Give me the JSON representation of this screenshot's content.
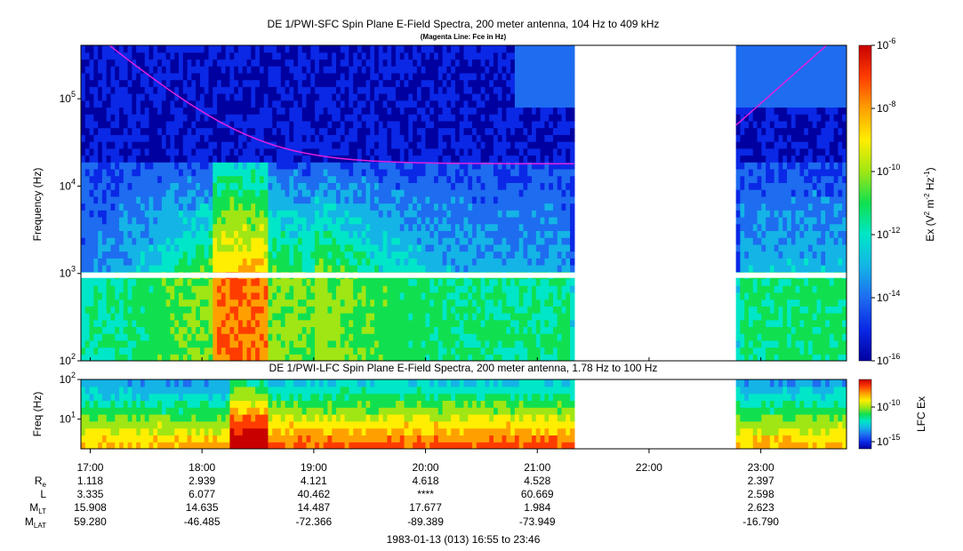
{
  "chart_data": [
    {
      "type": "heatmap",
      "title": "DE 1/PWI-SFC  Spin Plane E-Field Spectra, 200 meter antenna, 104 Hz to 409 kHz",
      "subtitle": "(Magenta Line: Fce in Hz)",
      "ylabel": "Frequency (Hz)",
      "yscale": "log",
      "ylim": [
        100,
        409000
      ],
      "yticks": [
        {
          "base": "10",
          "exp": "2"
        },
        {
          "base": "10",
          "exp": "3"
        },
        {
          "base": "10",
          "exp": "4"
        },
        {
          "base": "10",
          "exp": "5"
        }
      ],
      "colorbar": {
        "label_main": "Ex (V",
        "label_sup1": "2",
        "label_mid": " m",
        "label_sup2": "-2",
        "label_mid2": " Hz",
        "label_sup3": "-1",
        "label_end": ")",
        "scale": "log",
        "range": [
          1e-16,
          1e-06
        ],
        "ticks": [
          {
            "base": "10",
            "exp": "-6"
          },
          {
            "base": "10",
            "exp": "-8"
          },
          {
            "base": "10",
            "exp": "-10"
          },
          {
            "base": "10",
            "exp": "-12"
          },
          {
            "base": "10",
            "exp": "-14"
          },
          {
            "base": "10",
            "exp": "-16"
          }
        ]
      },
      "data_gaps_hours": [
        [
          21.33,
          22.78
        ]
      ],
      "fce_line": {
        "color": "#e020e0",
        "name": "Fce"
      }
    },
    {
      "type": "heatmap",
      "title": "DE 1/PWI-LFC  Spin Plane E-Field Spectra, 200 meter antenna, 1.78 Hz to 100 Hz",
      "ylabel": "Freq (Hz)",
      "yscale": "log",
      "ylim": [
        1.78,
        100
      ],
      "yticks": [
        {
          "base": "10",
          "exp": "1"
        },
        {
          "base": "10",
          "exp": "2"
        }
      ],
      "colorbar": {
        "label": "LFC Ex",
        "ticks": [
          {
            "base": "10",
            "exp": "-10"
          },
          {
            "base": "10",
            "exp": "-15"
          }
        ]
      },
      "data_gaps_hours": [
        [
          21.33,
          22.78
        ]
      ]
    }
  ],
  "time_axis": {
    "ticks": [
      "17:00",
      "18:00",
      "19:00",
      "20:00",
      "21:00",
      "22:00",
      "23:00"
    ],
    "tick_hours": [
      17,
      18,
      19,
      20,
      21,
      22,
      23
    ],
    "start_hour": 16.9167,
    "end_hour": 23.7667,
    "date_label": "1983-01-13 (013) 16:55 to 23:46"
  },
  "ephemeris": {
    "labels": [
      {
        "main": "R",
        "sub": "e"
      },
      {
        "main": "L",
        "sub": ""
      },
      {
        "main": "M",
        "sub": "LT"
      },
      {
        "main": "M",
        "sub": "LAT"
      }
    ],
    "rows": [
      [
        "1.118",
        "2.939",
        "4.121",
        "4.618",
        "4.528",
        "",
        "2.397"
      ],
      [
        "3.335",
        "6.077",
        "40.462",
        "****",
        "60.669",
        "",
        "2.598"
      ],
      [
        "15.908",
        "14.635",
        "14.487",
        "17.677",
        "1.984",
        "",
        "2.623"
      ],
      [
        "59.280",
        "-46.485",
        "-72.366",
        "-89.389",
        "-73.949",
        "",
        "-16.790"
      ]
    ]
  },
  "colors": {
    "fce_line": "#e020e0",
    "colormap": [
      "#0000a0",
      "#0a28e6",
      "#1e6cf0",
      "#14b4e6",
      "#00e6c8",
      "#10e050",
      "#a0e614",
      "#ffee00",
      "#ffa000",
      "#ff3c00",
      "#c80000"
    ]
  }
}
